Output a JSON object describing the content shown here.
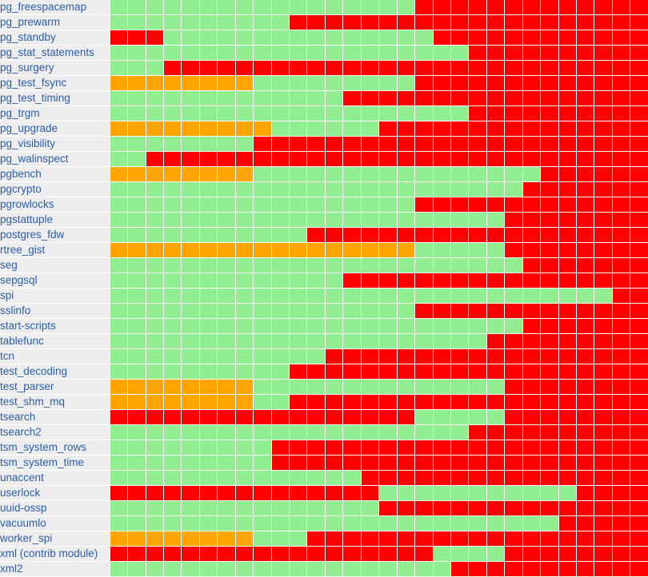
{
  "colors": {
    "ok": "#90ee90",
    "fail": "#ff0000",
    "warn": "#ffa500"
  },
  "legend": {
    "G": "ok",
    "R": "fail",
    "O": "warn"
  },
  "rows": [
    {
      "name": "pg_freespacemap",
      "cells": "GGGGGGGGGGGGGGGGGRRRRRRRRRRRRR"
    },
    {
      "name": "pg_prewarm",
      "cells": "GGGGGGGGGGRRRRRRRRRRRRRRRRRRRR"
    },
    {
      "name": "pg_standby",
      "cells": "RRRGGGGGGGGGGGGGGGRRRRRRRRRRRR"
    },
    {
      "name": "pg_stat_statements",
      "cells": "GGGGGGGGGGGGGGGGGGGGRRRRRRRRRR"
    },
    {
      "name": "pg_surgery",
      "cells": "GGGRRRRRRRRRRRRRRRRRRRRRRRRRRR"
    },
    {
      "name": "pg_test_fsync",
      "cells": "OOOOOOOOGGGGGGGGGRRRRRRRRRRRRR"
    },
    {
      "name": "pg_test_timing",
      "cells": "GGGGGGGGGGGGGRRRRRRRRRRRRRRRRR"
    },
    {
      "name": "pg_trgm",
      "cells": "GGGGGGGGGGGGGGGGGGGGRRRRRRRRRR"
    },
    {
      "name": "pg_upgrade",
      "cells": "OOOOOOOOOGGGGGGRRRRRRRRRRRRRRR"
    },
    {
      "name": "pg_visibility",
      "cells": "GGGGGGGGRRRRRRRRRRRRRRRRRRRRRR"
    },
    {
      "name": "pg_walinspect",
      "cells": "GGRRRRRRRRRRRRRRRRRRRRRRRRRRRR"
    },
    {
      "name": "pgbench",
      "cells": "OOOOOOOOGGGGGGGGGGGGGGGGRRRRRR"
    },
    {
      "name": "pgcrypto",
      "cells": "GGGGGGGGGGGGGGGGGGGGGGGRRRRRRR"
    },
    {
      "name": "pgrowlocks",
      "cells": "GGGGGGGGGGGGGGGGGRRRRRRRRRRRRR"
    },
    {
      "name": "pgstattuple",
      "cells": "GGGGGGGGGGGGGGGGGGGGGGRRRRRRRR"
    },
    {
      "name": "postgres_fdw",
      "cells": "GGGGGGGGGGGRRRRRRRRRRRRRRRRRRR"
    },
    {
      "name": "rtree_gist",
      "cells": "OOOOOOOOOOOOOOOOOGGGGGRRRRRRRR"
    },
    {
      "name": "seg",
      "cells": "GGGGGGGGGGGGGGGGGGGGGGGRRRRRRR"
    },
    {
      "name": "sepgsql",
      "cells": "GGGGGGGGGGGGGRRRRRRRRRRRRRRRRR"
    },
    {
      "name": "spi",
      "cells": "GGGGGGGGGGGGGGGGGGGGGGGGGGGGRR"
    },
    {
      "name": "sslinfo",
      "cells": "GGGGGGGGGGGGGGGGGRRRRRRRRRRRRR"
    },
    {
      "name": "start-scripts",
      "cells": "GGGGGGGGGGGGGGGGGGGGGGGRRRRRRR"
    },
    {
      "name": "tablefunc",
      "cells": "GGGGGGGGGGGGGGGGGGGGGRRRRRRRRR"
    },
    {
      "name": "tcn",
      "cells": "GGGGGGGGGGGGRRRRRRRRRRRRRRRRRR"
    },
    {
      "name": "test_decoding",
      "cells": "GGGGGGGGGGRRRRRRRRRRRRRRRRRRRR"
    },
    {
      "name": "test_parser",
      "cells": "OOOOOOOOGGGGGGGGGGGGGGRRRRRRRR"
    },
    {
      "name": "test_shm_mq",
      "cells": "OOOOOOOOGGRRRRRRRRRRRRRRRRRRRR"
    },
    {
      "name": "tsearch",
      "cells": "RRRRRRRRRRRRRRRRRGGGGGRRRRRRRR"
    },
    {
      "name": "tsearch2",
      "cells": "GGGGGGGGGGGGGGGGGGGGRRRRRRRRRR"
    },
    {
      "name": "tsm_system_rows",
      "cells": "GGGGGGGGGRRRRRRRRRRRRRRRRRRRRR"
    },
    {
      "name": "tsm_system_time",
      "cells": "GGGGGGGGGRRRRRRRRRRRRRRRRRRRRR"
    },
    {
      "name": "unaccent",
      "cells": "GGGGGGGGGGGGGGRRRRRRRRRRRRRRRR"
    },
    {
      "name": "userlock",
      "cells": "RRRRRRRRRRRRRRRGGGGGGGGGGGRRRR"
    },
    {
      "name": "uuid-ossp",
      "cells": "GGGGGGGGGGGGGGGRRRRRRRRRRRRRRR"
    },
    {
      "name": "vacuumlo",
      "cells": "GGGGGGGGGGGGGGGGGGGGGGGGGRRRRR"
    },
    {
      "name": "worker_spi",
      "cells": "OOOOOOOOGGGRRRRRRRRRRRRRRRRRRR"
    },
    {
      "name": "xml (contrib module)",
      "cells": "RRRRRRRRRRRRRRRRRRGGGGRRRRRRRR"
    },
    {
      "name": "xml2",
      "cells": "GGGGGGGGGGGGGGGGGGGRRRRRRRRRRR"
    }
  ]
}
